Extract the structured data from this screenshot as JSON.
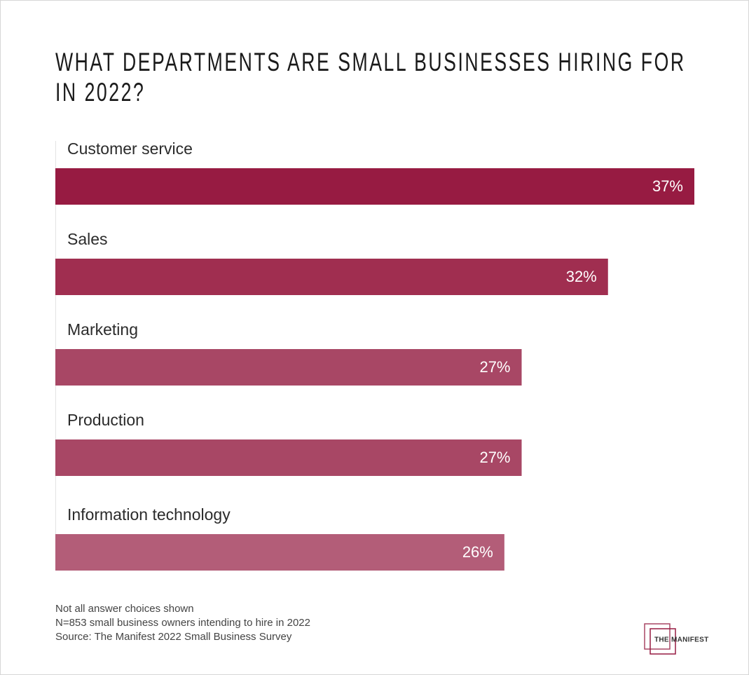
{
  "chart_data": {
    "type": "bar",
    "orientation": "horizontal",
    "title": "WHAT DEPARTMENTS ARE SMALL BUSINESSES HIRING FOR IN 2022?",
    "categories": [
      "Customer service",
      "Sales",
      "Marketing",
      "Production",
      "Information technology"
    ],
    "values": [
      37,
      32,
      27,
      27,
      26
    ],
    "value_labels": [
      "37%",
      "32%",
      "27%",
      "27%",
      "26%"
    ],
    "colors": [
      "#971b42",
      "#a02e50",
      "#a84765",
      "#a84765",
      "#b35d78"
    ],
    "notes": [
      "Not all answer choices shown",
      "N=853 small business owners intending to hire in 2022",
      "Source: The Manifest 2022 Small Business Survey"
    ],
    "logo": "THE MANIFEST"
  }
}
